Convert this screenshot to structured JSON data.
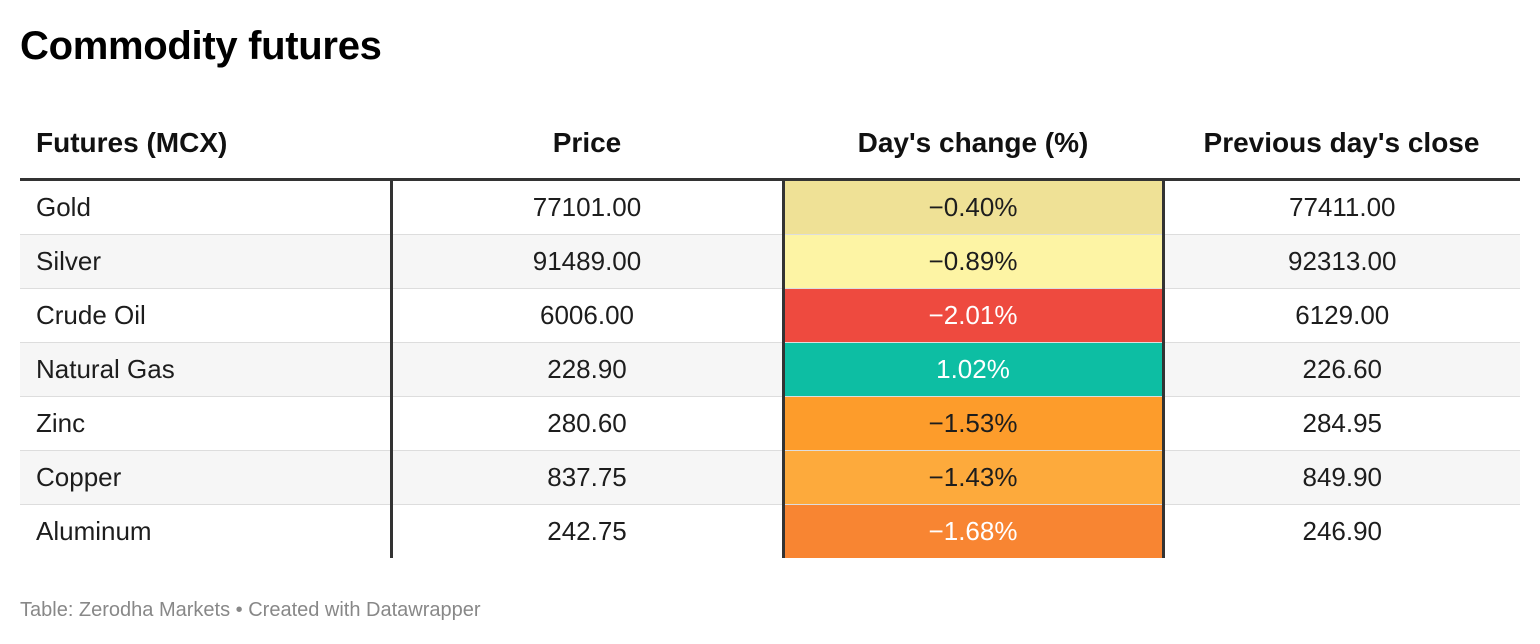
{
  "title": "Commodity futures",
  "footer": "Table: Zerodha Markets • Created with Datawrapper",
  "colors": {
    "gold_cell": "#efe196",
    "silver_cell": "#fdf4a4",
    "crude_cell": "#ee4a3f",
    "gas_cell": "#0dbea3",
    "zinc_cell": "#fd9c2b",
    "copper_cell": "#fdaa3c",
    "aluminum_cell": "#f88532"
  },
  "chart_data": {
    "type": "table",
    "title": "Commodity futures",
    "columns": [
      "Futures (MCX)",
      "Price",
      "Day's change (%)",
      "Previous day's close"
    ],
    "rows": [
      {
        "name": "Gold",
        "price": "77101.00",
        "change": "−0.40%",
        "change_value": -0.4,
        "prev_close": "77411.00",
        "cell_color": "#efe196",
        "text_color": "#1d1d1d"
      },
      {
        "name": "Silver",
        "price": "91489.00",
        "change": "−0.89%",
        "change_value": -0.89,
        "prev_close": "92313.00",
        "cell_color": "#fdf4a4",
        "text_color": "#1d1d1d"
      },
      {
        "name": "Crude Oil",
        "price": "6006.00",
        "change": "−2.01%",
        "change_value": -2.01,
        "prev_close": "6129.00",
        "cell_color": "#ee4a3f",
        "text_color": "#ffffff"
      },
      {
        "name": "Natural Gas",
        "price": "228.90",
        "change": "1.02%",
        "change_value": 1.02,
        "prev_close": "226.60",
        "cell_color": "#0dbea3",
        "text_color": "#ffffff"
      },
      {
        "name": "Zinc",
        "price": "280.60",
        "change": "−1.53%",
        "change_value": -1.53,
        "prev_close": "284.95",
        "cell_color": "#fd9c2b",
        "text_color": "#1d1d1d"
      },
      {
        "name": "Copper",
        "price": "837.75",
        "change": "−1.43%",
        "change_value": -1.43,
        "prev_close": "849.90",
        "cell_color": "#fdaa3c",
        "text_color": "#1d1d1d"
      },
      {
        "name": "Aluminum",
        "price": "242.75",
        "change": "−1.68%",
        "change_value": -1.68,
        "prev_close": "246.90",
        "cell_color": "#f88532",
        "text_color": "#ffffff"
      }
    ]
  }
}
